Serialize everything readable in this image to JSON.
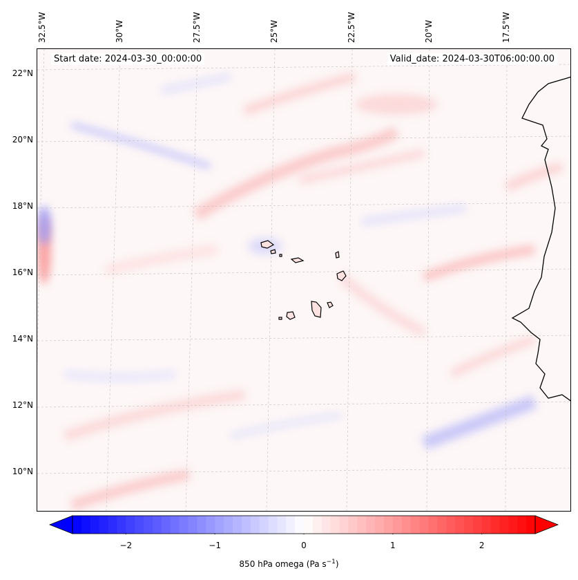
{
  "map": {
    "start_date": "Start date: 2024-03-30_00:00:00",
    "valid_date": "Valid_date: 2024-03-30T06:00:00.00",
    "lon_ticks": [
      {
        "label": "32.5°W",
        "value": -32.5
      },
      {
        "label": "30°W",
        "value": -30
      },
      {
        "label": "27.5°W",
        "value": -27.5
      },
      {
        "label": "25°W",
        "value": -25
      },
      {
        "label": "22.5°W",
        "value": -22.5
      },
      {
        "label": "20°W",
        "value": -20
      },
      {
        "label": "17.5°W",
        "value": -17.5
      }
    ],
    "lat_ticks": [
      {
        "label": "22°N",
        "value": 22
      },
      {
        "label": "20°N",
        "value": 20
      },
      {
        "label": "18°N",
        "value": 18
      },
      {
        "label": "16°N",
        "value": 16
      },
      {
        "label": "14°N",
        "value": 14
      },
      {
        "label": "12°N",
        "value": 12
      },
      {
        "label": "10°N",
        "value": 10
      }
    ],
    "colors": {
      "negative": "#0000ff",
      "neutral": "#ffffff",
      "positive": "#ff0000",
      "coast": "#000000"
    }
  },
  "colorbar": {
    "label_prefix": "850 hPa omega (Pa s",
    "label_exp": "−1",
    "label_suffix": ")",
    "range": [
      -2.6,
      2.6
    ],
    "ticks": [
      {
        "label": "−2",
        "value": -2
      },
      {
        "label": "−1",
        "value": -1
      },
      {
        "label": "0",
        "value": 0
      },
      {
        "label": "1",
        "value": 1
      },
      {
        "label": "2",
        "value": 2
      }
    ]
  }
}
